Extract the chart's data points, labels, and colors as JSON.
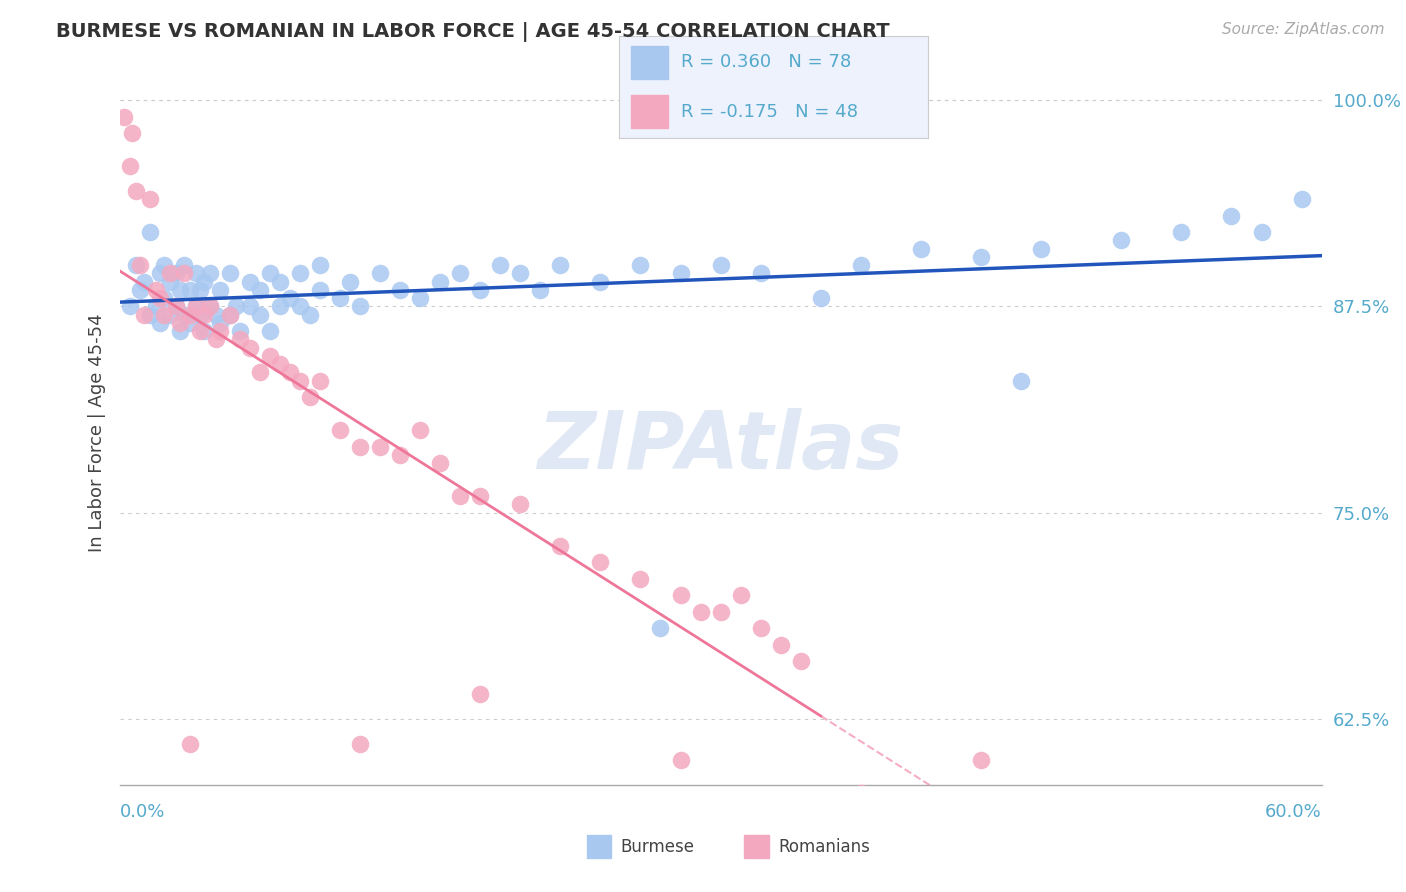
{
  "title": "BURMESE VS ROMANIAN IN LABOR FORCE | AGE 45-54 CORRELATION CHART",
  "source": "Source: ZipAtlas.com",
  "ylabel": "In Labor Force | Age 45-54",
  "xlim": [
    0.0,
    0.6
  ],
  "ylim": [
    0.585,
    1.012
  ],
  "yticks": [
    0.625,
    0.75,
    0.875,
    1.0
  ],
  "ytick_labels": [
    "62.5%",
    "75.0%",
    "87.5%",
    "100.0%"
  ],
  "burmese_color": "#a8c8f0",
  "romanian_color": "#f4a8c0",
  "burmese_line_color": "#2255bb",
  "romanian_line_color": "#ee7799",
  "R_burmese": 0.36,
  "N_burmese": 78,
  "R_romanian": -0.175,
  "N_romanian": 48,
  "watermark": "ZIPAtlas",
  "legend_bg": "#eef2fc",
  "background_color": "#ffffff",
  "grid_color": "#cccccc",
  "tick_color": "#55aacc",
  "text_color": "#444444"
}
